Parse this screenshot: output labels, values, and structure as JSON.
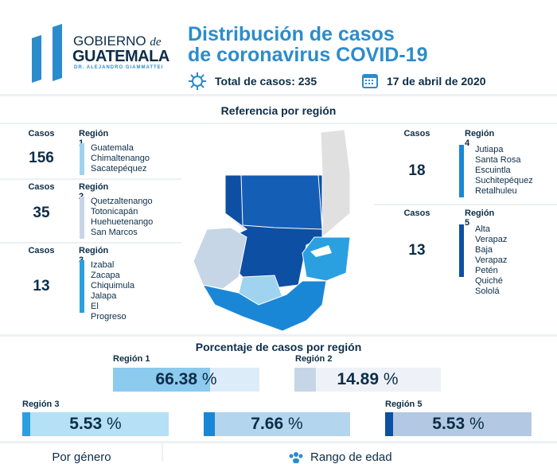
{
  "logo": {
    "line1": "GOBIERNO",
    "line1_script": "de",
    "line2": "GUATEMALA",
    "line3": "DR. ALEJANDRO GIAMMATTEI"
  },
  "title": {
    "line1": "Distribución de casos",
    "line2": "de coronavirus COVID-19"
  },
  "total": "Total de casos: 235",
  "date": "17 de abril de 2020",
  "ref_title": "Referencia por región",
  "cases_label": "Casos",
  "regions": [
    {
      "name": "Región 1",
      "cases": "156",
      "color": "#9fd3f0",
      "places": [
        "Guatemala",
        "Chimaltenango",
        "Sacatepéquez"
      ]
    },
    {
      "name": "Región 2",
      "cases": "35",
      "color": "#c7d6e6",
      "places": [
        "Quetzaltenango",
        "Totonicapán",
        "Huehuetenango",
        "San Marcos"
      ]
    },
    {
      "name": "Región 3",
      "cases": "13",
      "color": "#2aa0e0",
      "places": [
        "Izabal",
        "Zacapa",
        "Chiquimula",
        "Jalapa",
        "El Progreso"
      ]
    },
    {
      "name": "Región 4",
      "cases": "18",
      "color": "#1a87d6",
      "places": [
        "Jutiapa",
        "Santa Rosa",
        "Escuintla",
        "Suchitepéquez",
        "Retalhuleu"
      ]
    },
    {
      "name": "Región 5",
      "cases": "13",
      "color": "#0d4fa3",
      "places": [
        "Alta Verapaz",
        "Baja Verapaz",
        "Petén",
        "Quiché",
        "Sololá"
      ]
    }
  ],
  "pct_title": "Porcentaje de casos por región",
  "percentages": [
    {
      "label": "Región 1",
      "value": "66.38",
      "pct": 66.38,
      "unit": "%"
    },
    {
      "label": "Región 2",
      "value": "14.89",
      "pct": 14.89,
      "unit": "%"
    },
    {
      "label": "Región 3",
      "value": "5.53",
      "pct": 5.53,
      "unit": "%"
    },
    {
      "label": "",
      "value": "7.66",
      "pct": 7.66,
      "unit": "%"
    },
    {
      "label": "Región 5",
      "value": "5.53",
      "pct": 5.53,
      "unit": "%"
    }
  ],
  "gender_title": "Por género",
  "age_title": "Rango de edad"
}
